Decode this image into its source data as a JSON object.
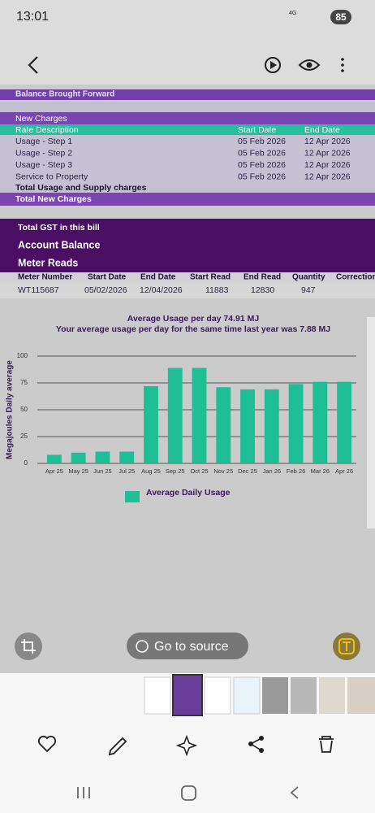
{
  "status_bar": {
    "time": "13:01",
    "network": "4G",
    "battery": "85"
  },
  "bill": {
    "balance_brought_forward": "Balance Brought Forward",
    "new_charges": "New Charges",
    "charges_header": [
      "Rate Description",
      "Start Date",
      "End Date"
    ],
    "charges_rows": [
      [
        "Usage - Step 1",
        "05 Feb 2026",
        "12 Apr 2026"
      ],
      [
        "Usage - Step 2",
        "05 Feb 2026",
        "12 Apr 2026"
      ],
      [
        "Usage - Step 3",
        "05 Feb 2026",
        "12 Apr 2026"
      ],
      [
        "Service to Property",
        "05 Feb 2026",
        "12 Apr 2026"
      ]
    ],
    "total_usage": "Total Usage and Supply charges",
    "total_new_charges": "Total New Charges",
    "total_gst": "Total GST in this bill",
    "account_balance": "Account Balance",
    "meter_reads": "Meter Reads",
    "meter_header": [
      "Meter Number",
      "Start Date",
      "End Date",
      "Start Read",
      "End Read",
      "Quantity",
      "Correction"
    ],
    "meter_rows": [
      [
        "WT115687",
        "05/02/2026",
        "12/04/2026",
        "11883",
        "12830",
        "947"
      ]
    ]
  },
  "chart_data": {
    "type": "bar",
    "title": "Average Usage per day 74.91 MJ",
    "subtitle": "Your average usage per day for the same time last year was 7.88 MJ",
    "y_label": "Megajoules Daily average",
    "categories": [
      "Apr 25",
      "May 25",
      "Jun 25",
      "Jul 25",
      "Aug 25",
      "Sep 25",
      "Oct 25",
      "Nov 25",
      "Dec 25",
      "Jan 26",
      "Feb 26",
      "Mar 26",
      "Apr 26"
    ],
    "series": [
      {
        "name": "Average Daily Usage",
        "color": "#1fbf96",
        "values": [
          8,
          10,
          11,
          11,
          72,
          89,
          89,
          71,
          69,
          69,
          74,
          76,
          76
        ]
      }
    ],
    "ylim": [
      0,
      100
    ],
    "yticks": [
      0,
      25,
      50,
      75,
      100
    ],
    "grid": true
  },
  "go_to_source": "Go to source"
}
